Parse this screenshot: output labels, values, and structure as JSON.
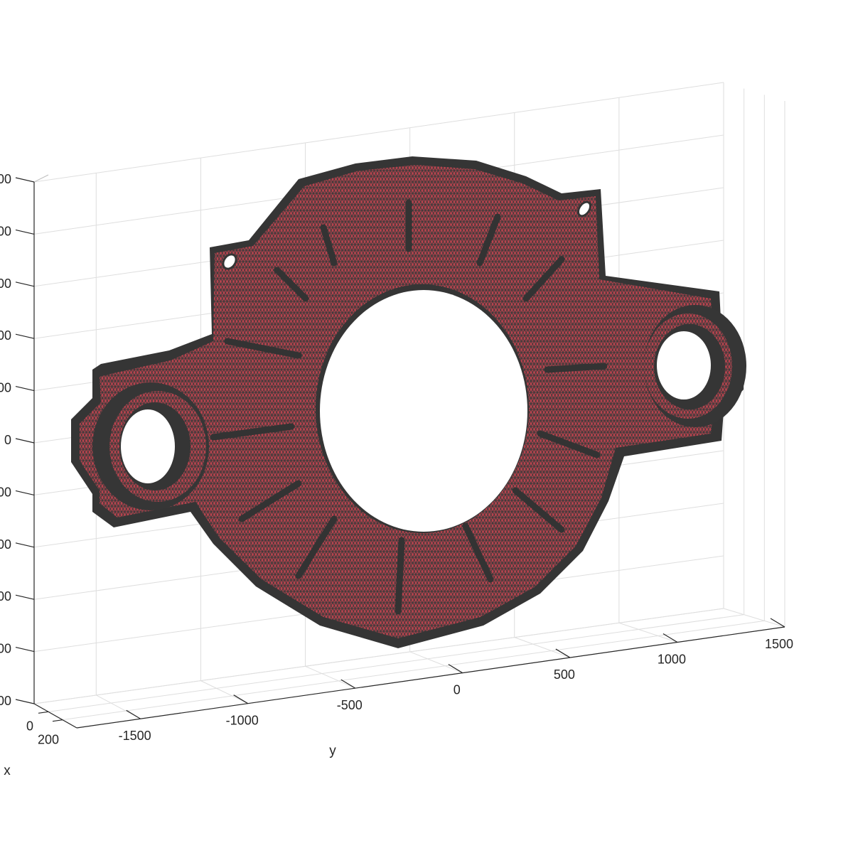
{
  "chart_data": {
    "type": "3d-mesh",
    "xlabel": "x",
    "ylabel": "y",
    "zlabel": "",
    "x_ticks": [
      "0",
      "200"
    ],
    "y_ticks": [
      "-1500",
      "-1000",
      "-500",
      "0",
      "500",
      "1000",
      "1500"
    ],
    "z_ticks": [
      "00",
      "00",
      "00",
      "00",
      "00",
      "0",
      "00",
      "00",
      "00",
      "00",
      "00"
    ],
    "grid": true,
    "colors": {
      "face": "#b8434e",
      "edge": "#333333",
      "grid": "#dedede",
      "axis": "#262626"
    }
  }
}
